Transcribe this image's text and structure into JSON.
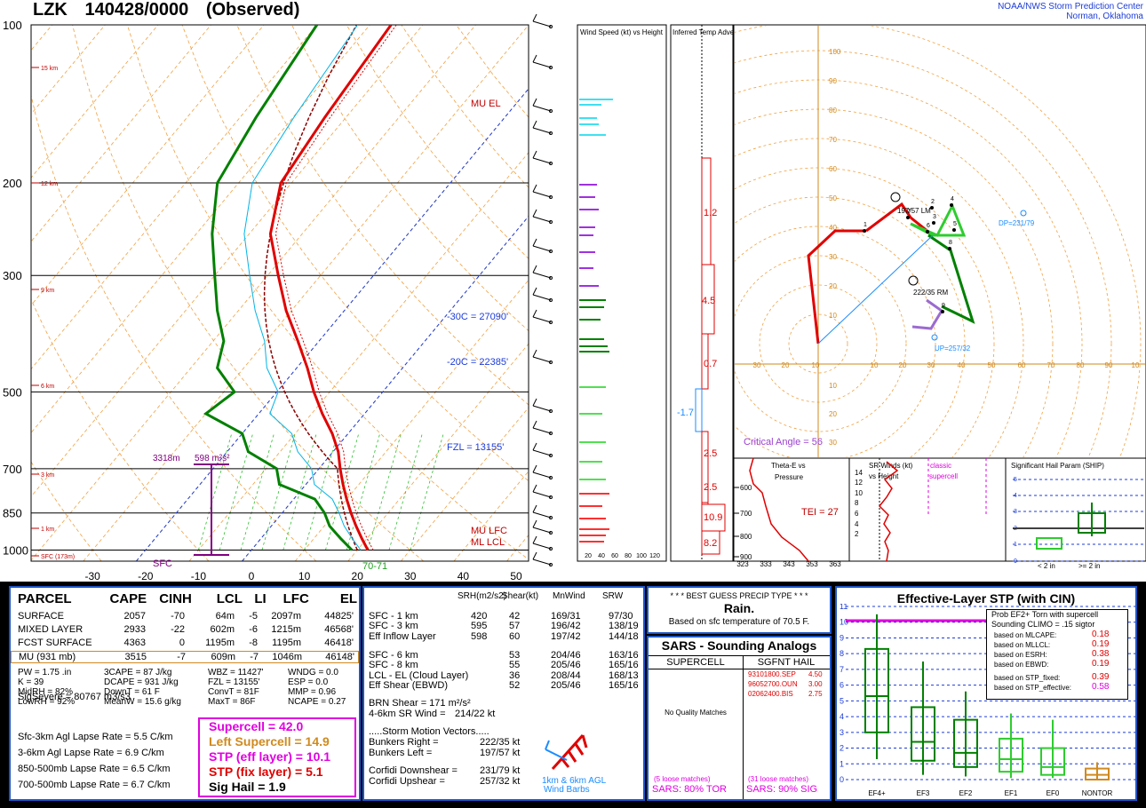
{
  "header": {
    "station": "LZK",
    "time": "140428/0000",
    "status": "(Observed)",
    "credit_line1": "NOAA/NWS Storm Prediction Center",
    "credit_line2": "Norman, Oklahoma"
  },
  "colors": {
    "temp": "#e00000",
    "dewpoint": "#008000",
    "wetbulb": "#00c8ff",
    "virtual": "#ff00ff",
    "accent": "#1d57c9"
  },
  "chart_data": [
    {
      "type": "line",
      "title": "Skew-T Log-P",
      "pressure_ticks": [
        "100",
        "200",
        "300",
        "500",
        "700",
        "850",
        "1000"
      ],
      "temp_ticks": [
        "-30",
        "-20",
        "-10",
        "0",
        "10",
        "20",
        "30",
        "40",
        "50"
      ],
      "height_labels": [
        "15 km",
        "12 km",
        "9 km",
        "6 km",
        "3 km",
        "1 km",
        "SFC (173m)"
      ],
      "level_labels": [
        "MU EL",
        "-30C = 27090'",
        "-20C = 22385'",
        "FZL = 13155'",
        "MU LFC",
        "ML LCL",
        "SFC",
        "70-71"
      ],
      "effective_inflow_label": [
        "3318m",
        "598 m²s²"
      ],
      "series": [
        {
          "name": "Temperature",
          "p": [
            1000,
            950,
            900,
            850,
            800,
            750,
            700,
            650,
            600,
            550,
            500,
            450,
            400,
            350,
            300,
            250,
            200,
            150,
            100
          ],
          "t": [
            22,
            19,
            16,
            13,
            10,
            7,
            4,
            1,
            -3,
            -8,
            -13,
            -18,
            -24,
            -31,
            -38,
            -46,
            -52,
            -54,
            -56
          ]
        },
        {
          "name": "Dewpoint",
          "p": [
            1000,
            950,
            900,
            850,
            800,
            750,
            700,
            650,
            600,
            550,
            500,
            450,
            400,
            350,
            300,
            250,
            200,
            150,
            100
          ],
          "t": [
            19,
            15,
            11,
            8,
            4,
            -5,
            -8,
            -16,
            -20,
            -30,
            -28,
            -35,
            -38,
            -44,
            -50,
            -57,
            -64,
            -67,
            -70
          ]
        }
      ]
    },
    {
      "type": "bar",
      "title": "Wind Speed (kt) vs Height",
      "x_ticks": [
        "20",
        "40",
        "60",
        "80",
        "100",
        "120"
      ]
    },
    {
      "type": "bar",
      "title": "Inferred Temp Advection (C / hr)",
      "labels": [
        "1.2",
        "4.5",
        "0.7",
        "-1.7",
        "2.5",
        "2.5",
        "10.9",
        "8.2"
      ]
    },
    {
      "type": "line",
      "title": "Hodograph",
      "ring_labels": [
        "10",
        "20",
        "30",
        "40",
        "50",
        "60",
        "70",
        "80",
        "90",
        "100",
        "110"
      ],
      "x_labels": [
        "30",
        "20",
        "10",
        "10",
        "20",
        "30",
        "40",
        "50",
        "60",
        "70",
        "80",
        "90",
        "10"
      ],
      "points": [
        "1",
        "2",
        "3",
        "4",
        "5",
        "6",
        "7",
        "8",
        "9"
      ],
      "labels": [
        "197/57 LM",
        "222/35 RM",
        "DP=231/79",
        "UP=257/32"
      ],
      "critical_angle": "Critical Angle = 56"
    }
  ],
  "theta": {
    "title_line1": "Theta-E vs",
    "title_line2": "Pressure",
    "tei": "TEI = 27",
    "p_labels": [
      "600",
      "700",
      "800",
      "900"
    ],
    "x_labels": [
      "323",
      "333",
      "343",
      "353",
      "363"
    ]
  },
  "srwinds": {
    "title_line1": "SR Winds (kt)",
    "title_line2": "vs Height",
    "classic": "classic",
    "supercell": "supercell",
    "h_labels": [
      "14",
      "12",
      "10",
      "8",
      "6",
      "4",
      "2"
    ]
  },
  "ship": {
    "title": "Significant Hail Param (SHIP)",
    "y": [
      "5",
      "4",
      "3",
      "2",
      "1",
      "0"
    ],
    "x1": "< 2 in",
    "x2": ">= 2 in"
  },
  "parcel": {
    "headers": [
      "PARCEL",
      "CAPE",
      "CINH",
      "LCL",
      "LI",
      "LFC",
      "EL"
    ],
    "rows": [
      [
        "SURFACE",
        "2057",
        "-70",
        "64m",
        "-5",
        "2097m",
        "44825'"
      ],
      [
        "MIXED LAYER",
        "2933",
        "-22",
        "602m",
        "-6",
        "1215m",
        "46568'"
      ],
      [
        "FCST SURFACE",
        "4363",
        "0",
        "1195m",
        "-8",
        "1195m",
        "46418'"
      ],
      [
        "MU    (931 mb)",
        "3515",
        "-7",
        "609m",
        "-7",
        "1046m",
        "46148'"
      ]
    ],
    "indices": [
      [
        "PW = 1.75 .in",
        "3CAPE = 87 J/kg",
        "WBZ = 11427'",
        "WNDG = 0.0"
      ],
      [
        "K = 39",
        "DCAPE = 931 J/kg",
        "FZL = 13155'",
        "ESP = 0.0"
      ],
      [
        "MidRH = 82%",
        "DownT = 61 F",
        "ConvT = 81F",
        "MMP = 0.96"
      ],
      [
        "LowRH = 92%",
        "MeanW = 15.6 g/kg",
        "MaxT = 86F",
        "NCAPE = 0.27"
      ]
    ],
    "sigsevere": "SigSevere = 80767 m3/s3",
    "lapse": [
      "Sfc-3km Agl Lapse Rate =  5.5 C/km",
      "3-6km Agl Lapse Rate =   6.9 C/km",
      "850-500mb Lapse Rate =  6.5 C/km",
      "700-500mb Lapse Rate =  6.7 C/km"
    ],
    "composites": [
      "Supercell = 42.0",
      "Left Supercell = 14.9",
      "STP (eff layer) = 10.1",
      "STP (fix layer) = 5.1",
      "Sig Hail = 1.9"
    ]
  },
  "kinematics": {
    "headers": [
      "SRH(m2/s2)",
      "Shear(kt)",
      "MnWind",
      "SRW"
    ],
    "rows": [
      [
        "SFC - 1 km",
        "420",
        "42",
        "169/31",
        "97/30"
      ],
      [
        "SFC - 3 km",
        "595",
        "57",
        "196/42",
        "138/19"
      ],
      [
        "Eff Inflow Layer",
        "598",
        "60",
        "197/42",
        "144/18"
      ],
      [
        "SFC - 6 km",
        "",
        "53",
        "204/46",
        "163/16"
      ],
      [
        "SFC - 8 km",
        "",
        "55",
        "205/46",
        "165/16"
      ],
      [
        "LCL - EL (Cloud Layer)",
        "",
        "36",
        "208/44",
        "168/13"
      ],
      [
        "Eff Shear (EBWD)",
        "",
        "52",
        "205/46",
        "165/16"
      ]
    ],
    "brn": "BRN Shear = 171 m²/s²",
    "sr46": "4-6km SR Wind =",
    "sr46v": "214/22 kt",
    "storm_title": ".....Storm Motion Vectors.....",
    "motion": [
      [
        "Bunkers Right =",
        "222/35 kt"
      ],
      [
        "Bunkers Left =",
        "197/57 kt"
      ],
      [
        "Corfidi Downshear =",
        "231/79 kt"
      ],
      [
        "Corfidi Upshear =",
        "257/32 kt"
      ]
    ],
    "barbs1": "1km & 6km AGL",
    "barbs2": "Wind Barbs"
  },
  "precip": {
    "title": "* * * BEST GUESS PRECIP TYPE * * *",
    "value": "Rain.",
    "note": "Based on sfc temperature of 70.5 F."
  },
  "sars": {
    "title": "SARS - Sounding Analogs",
    "col1": "SUPERCELL",
    "col2": "SGFNT HAIL",
    "none": "No Quality Matches",
    "hail": [
      [
        "93101800.SEP",
        "4.50"
      ],
      [
        "96052700.OUN",
        "3.00"
      ],
      [
        "02062400.BIS",
        "2.75"
      ]
    ],
    "loose1": "(5 loose matches)",
    "loose2": "(31 loose matches)",
    "pct1": "SARS:  80% TOR",
    "pct2": "SARS:  90% SIG"
  },
  "stp": {
    "title": "Effective-Layer STP (with CIN)",
    "y": [
      "11",
      "10",
      "9",
      "8",
      "7",
      "6",
      "5",
      "4",
      "3",
      "2",
      "1",
      "0"
    ],
    "cats": [
      "EF4+",
      "EF3",
      "EF2",
      "EF1",
      "EF0",
      "NONTOR"
    ],
    "prob_title": "Prob EF2+ Torn with supercell",
    "prob_sub": "Sounding CLIMO = .15 sigtor",
    "prob": [
      [
        "based on MLCAPE:",
        "0.18"
      ],
      [
        "based on MLLCL:",
        "0.19"
      ],
      [
        "based on ESRH:",
        "0.38"
      ],
      [
        "based on EBWD:",
        "0.19"
      ],
      [
        "based on STP_fixed:",
        "0.39"
      ],
      [
        "based on STP_effective:",
        "0.58"
      ]
    ]
  }
}
